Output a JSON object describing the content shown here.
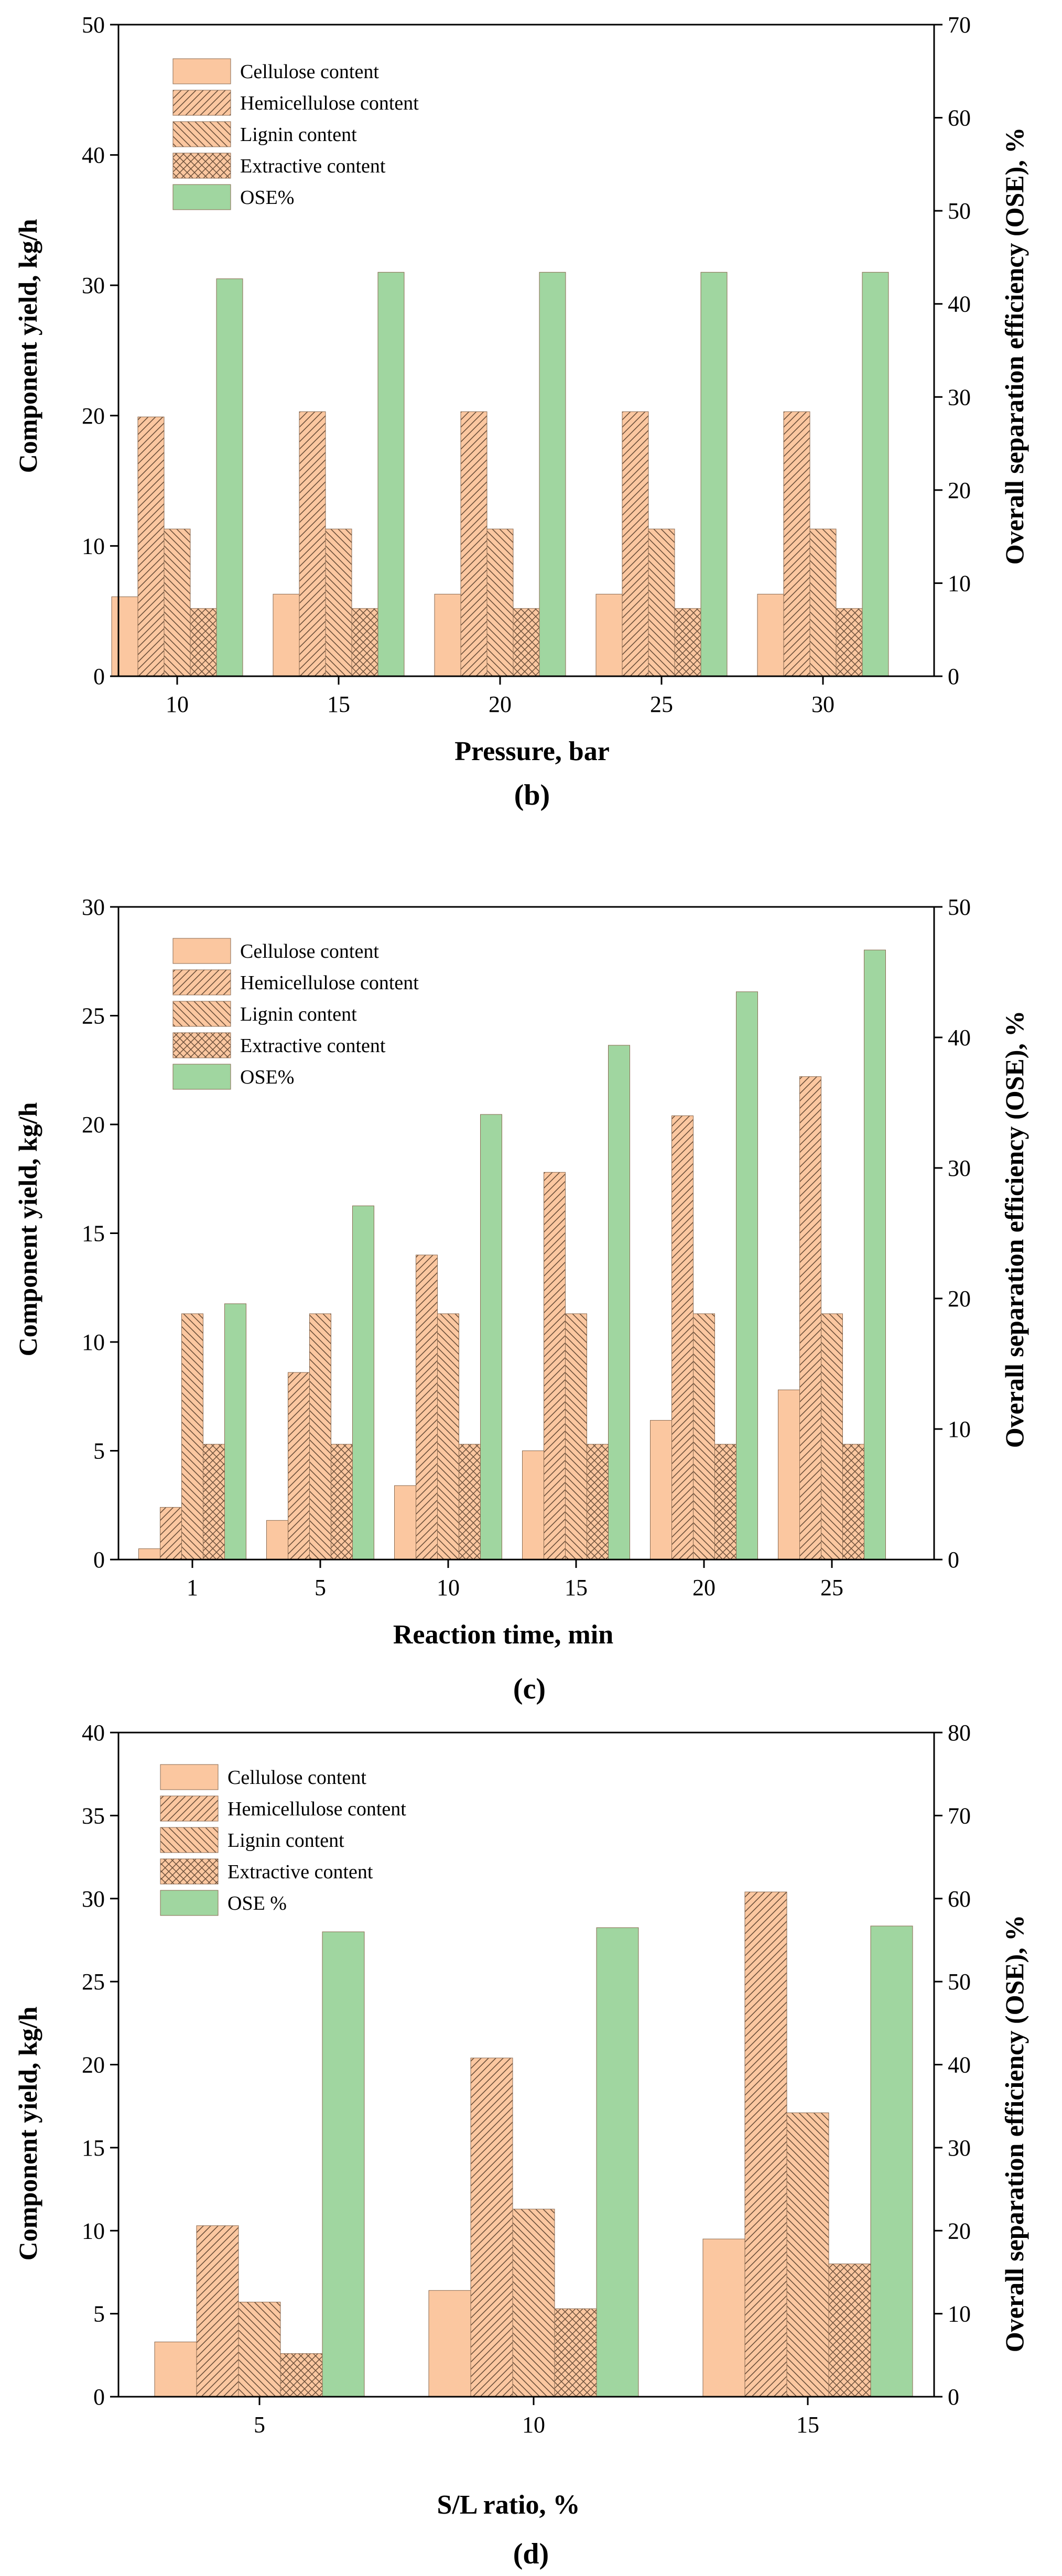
{
  "colors": {
    "bar_fill": "#FBC7A0",
    "hatch_stroke": "#6b4f3a",
    "ose_fill": "#A0D6A0",
    "axis": "#000000"
  },
  "legend_entries": [
    {
      "key": "cellulose",
      "label": "Cellulose content",
      "pattern": "solid"
    },
    {
      "key": "hemicellulose",
      "label": "Hemicellulose content",
      "pattern": "hatch-right"
    },
    {
      "key": "lignin",
      "label": "Lignin content",
      "pattern": "hatch-left"
    },
    {
      "key": "extractive",
      "label": "Extractive content",
      "pattern": "crosshatch"
    },
    {
      "key": "ose",
      "label": "OSE%",
      "pattern": "ose"
    }
  ],
  "chart_data": [
    {
      "panel_label": "(b)",
      "type": "bar",
      "title": "",
      "xlabel": "Pressure, bar",
      "ylabel": "Component yield, kg/h",
      "y2label": "Overall separation efficiency (OSE), %",
      "categories": [
        "10",
        "15",
        "20",
        "25",
        "30"
      ],
      "ylim": [
        0,
        50
      ],
      "yticks": [
        0,
        10,
        20,
        30,
        40,
        50
      ],
      "y2lim": [
        0,
        70
      ],
      "y2ticks": [
        0,
        10,
        20,
        30,
        40,
        50,
        60,
        70
      ],
      "series": [
        {
          "name": "Cellulose content",
          "axis": "left",
          "values": [
            6.1,
            6.3,
            6.3,
            6.3,
            6.3
          ]
        },
        {
          "name": "Hemicellulose content",
          "axis": "left",
          "values": [
            19.9,
            20.3,
            20.3,
            20.3,
            20.3
          ]
        },
        {
          "name": "Lignin content",
          "axis": "left",
          "values": [
            11.3,
            11.3,
            11.3,
            11.3,
            11.3
          ]
        },
        {
          "name": "Extractive content",
          "axis": "left",
          "values": [
            5.2,
            5.2,
            5.2,
            5.2,
            5.2
          ]
        },
        {
          "name": "OSE%",
          "axis": "right",
          "values": [
            42.7,
            43.4,
            43.4,
            43.4,
            43.4
          ]
        }
      ],
      "legend": "top-left"
    },
    {
      "panel_label": "(c)",
      "type": "bar",
      "title": "",
      "xlabel": "Reaction time, min",
      "ylabel": "Component yield, kg/h",
      "y2label": "Overall separation efficiency (OSE), %",
      "categories": [
        "1",
        "5",
        "10",
        "15",
        "20",
        "25"
      ],
      "ylim": [
        0,
        30
      ],
      "yticks": [
        0,
        5,
        10,
        15,
        20,
        25,
        30
      ],
      "y2lim": [
        0,
        50
      ],
      "y2ticks": [
        0,
        10,
        20,
        30,
        40,
        50
      ],
      "series": [
        {
          "name": "Cellulose content",
          "axis": "left",
          "values": [
            0.5,
            1.8,
            3.4,
            5.0,
            6.4,
            7.8
          ]
        },
        {
          "name": "Hemicellulose content",
          "axis": "left",
          "values": [
            2.4,
            8.6,
            14.0,
            17.8,
            20.4,
            22.2
          ]
        },
        {
          "name": "Lignin content",
          "axis": "left",
          "values": [
            11.3,
            11.3,
            11.3,
            11.3,
            11.3,
            11.3
          ]
        },
        {
          "name": "Extractive content",
          "axis": "left",
          "values": [
            5.3,
            5.3,
            5.3,
            5.3,
            5.3,
            5.3
          ]
        },
        {
          "name": "OSE%",
          "axis": "right",
          "values": [
            19.6,
            27.1,
            34.1,
            39.4,
            43.5,
            46.7
          ]
        }
      ],
      "legend": "top-left"
    },
    {
      "panel_label": "(d)",
      "type": "bar",
      "title": "",
      "xlabel": "S/L ratio, %",
      "ylabel": "Component yield, kg/h",
      "y2label": "Overall separation efficiency (OSE), %",
      "categories": [
        "5",
        "10",
        "15"
      ],
      "ylim": [
        0,
        40
      ],
      "yticks": [
        0,
        5,
        10,
        15,
        20,
        25,
        30,
        35,
        40
      ],
      "y2lim": [
        0,
        80
      ],
      "y2ticks": [
        0,
        10,
        20,
        30,
        40,
        50,
        60,
        70,
        80
      ],
      "series": [
        {
          "name": "Cellulose content",
          "axis": "left",
          "values": [
            3.3,
            6.4,
            9.5
          ]
        },
        {
          "name": "Hemicellulose content",
          "axis": "left",
          "values": [
            10.3,
            20.4,
            30.4
          ]
        },
        {
          "name": "Lignin content",
          "axis": "left",
          "values": [
            5.7,
            11.3,
            17.1
          ]
        },
        {
          "name": "Extractive content",
          "axis": "left",
          "values": [
            2.6,
            5.3,
            8.0
          ]
        },
        {
          "name": "OSE %",
          "axis": "right",
          "values": [
            56.0,
            56.5,
            56.7
          ]
        }
      ],
      "legend": "top-left"
    }
  ]
}
